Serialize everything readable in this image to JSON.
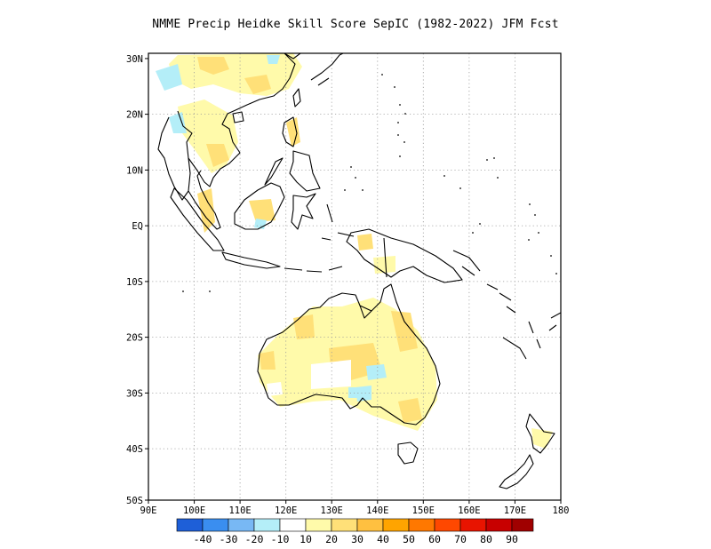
{
  "title": "NMME Precip Heidke Skill Score SepIC (1982-2022) JFM Fcst",
  "map": {
    "lon_range": [
      90,
      180
    ],
    "lat_range": [
      -50,
      30
    ],
    "x_ticks": [
      "90E",
      "100E",
      "110E",
      "120E",
      "130E",
      "140E",
      "150E",
      "160E",
      "170E",
      "180"
    ],
    "y_ticks": [
      "30N",
      "20N",
      "10N",
      "EQ",
      "10S",
      "20S",
      "30S",
      "40S",
      "50S"
    ],
    "gridlines": "dotted"
  },
  "colorbar": {
    "colors": [
      "#1e5fd8",
      "#3a8ef0",
      "#78b8f4",
      "#b4eef8",
      "#ffffff",
      "#fffaaa",
      "#ffe078",
      "#ffc040",
      "#ffa400",
      "#ff7800",
      "#ff4800",
      "#e81400",
      "#c80000",
      "#a00000"
    ],
    "labels": [
      "-40",
      "-30",
      "-20",
      "-10",
      "10",
      "20",
      "30",
      "40",
      "50",
      "60",
      "70",
      "80",
      "90"
    ]
  }
}
